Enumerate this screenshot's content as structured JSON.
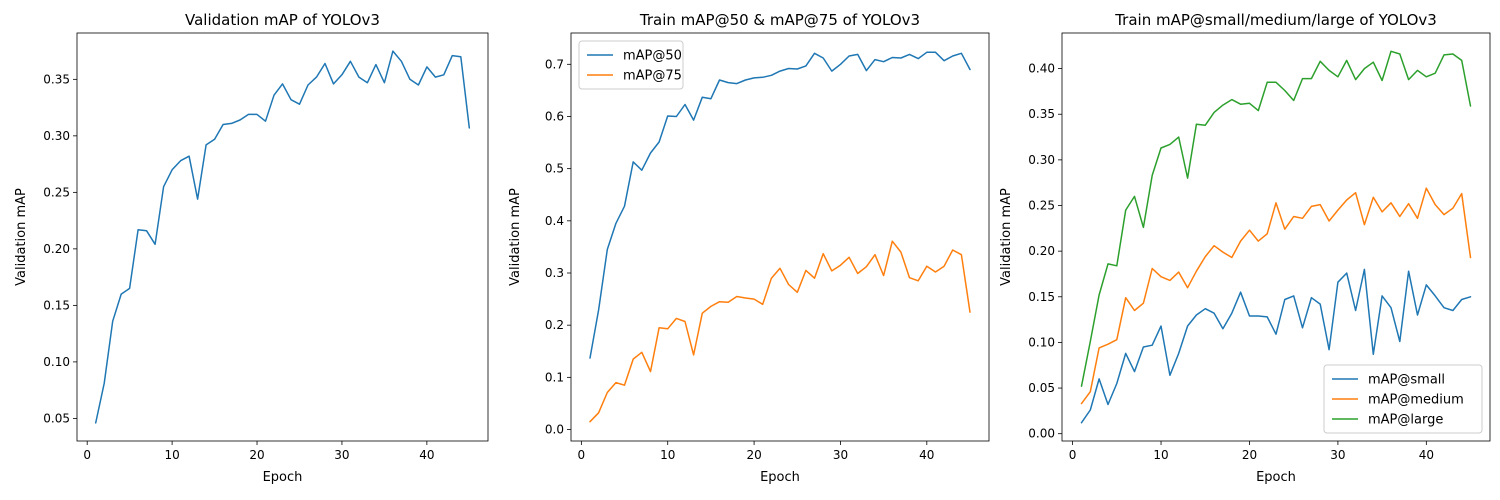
{
  "chart_data": [
    {
      "type": "line",
      "title": "Validation mAP of YOLOv3",
      "xlabel": "Epoch",
      "ylabel": "Validation mAP",
      "xlim": [
        -1.2,
        47.2
      ],
      "ylim": [
        0.03,
        0.391
      ],
      "xticks": [
        0,
        10,
        20,
        30,
        40
      ],
      "yticks": [
        0.05,
        0.1,
        0.15,
        0.2,
        0.25,
        0.3,
        0.35
      ],
      "ytick_labels": [
        "0.05",
        "0.10",
        "0.15",
        "0.20",
        "0.25",
        "0.30",
        "0.35"
      ],
      "grid": false,
      "legend": null,
      "x": [
        1,
        2,
        3,
        4,
        5,
        6,
        7,
        8,
        9,
        10,
        11,
        12,
        13,
        14,
        15,
        16,
        17,
        18,
        19,
        20,
        21,
        22,
        23,
        24,
        25,
        26,
        27,
        28,
        29,
        30,
        31,
        32,
        33,
        34,
        35,
        36,
        37,
        38,
        39,
        40,
        41,
        42,
        43,
        44,
        45
      ],
      "series": [
        {
          "color": "#1f77b4",
          "values": [
            0.046,
            0.081,
            0.136,
            0.16,
            0.165,
            0.217,
            0.216,
            0.204,
            0.255,
            0.27,
            0.278,
            0.282,
            0.244,
            0.292,
            0.297,
            0.31,
            0.311,
            0.314,
            0.319,
            0.319,
            0.313,
            0.336,
            0.346,
            0.332,
            0.328,
            0.345,
            0.352,
            0.364,
            0.346,
            0.354,
            0.366,
            0.352,
            0.347,
            0.363,
            0.347,
            0.375,
            0.366,
            0.35,
            0.345,
            0.361,
            0.352,
            0.354,
            0.371,
            0.37,
            0.307
          ]
        }
      ]
    },
    {
      "type": "line",
      "title": "Train mAP@50 & mAP@75 of YOLOv3",
      "xlabel": "Epoch",
      "ylabel": "Validation mAP",
      "xlim": [
        -1.2,
        47.2
      ],
      "ylim": [
        -0.022,
        0.76
      ],
      "xticks": [
        0,
        10,
        20,
        30,
        40
      ],
      "yticks": [
        0.0,
        0.1,
        0.2,
        0.3,
        0.4,
        0.5,
        0.6,
        0.7
      ],
      "ytick_labels": [
        "0.0",
        "0.1",
        "0.2",
        "0.3",
        "0.4",
        "0.5",
        "0.6",
        "0.7"
      ],
      "grid": false,
      "legend": "upper-left",
      "x": [
        1,
        2,
        3,
        4,
        5,
        6,
        7,
        8,
        9,
        10,
        11,
        12,
        13,
        14,
        15,
        16,
        17,
        18,
        19,
        20,
        21,
        22,
        23,
        24,
        25,
        26,
        27,
        28,
        29,
        30,
        31,
        32,
        33,
        34,
        35,
        36,
        37,
        38,
        39,
        40,
        41,
        42,
        43,
        44,
        45
      ],
      "series": [
        {
          "name": "mAP@50",
          "color": "#1f77b4",
          "values": [
            0.137,
            0.229,
            0.345,
            0.395,
            0.428,
            0.513,
            0.497,
            0.53,
            0.551,
            0.601,
            0.6,
            0.623,
            0.593,
            0.637,
            0.634,
            0.67,
            0.665,
            0.663,
            0.67,
            0.674,
            0.675,
            0.679,
            0.687,
            0.692,
            0.691,
            0.697,
            0.721,
            0.712,
            0.687,
            0.7,
            0.716,
            0.719,
            0.688,
            0.709,
            0.705,
            0.713,
            0.712,
            0.719,
            0.711,
            0.723,
            0.723,
            0.707,
            0.716,
            0.721,
            0.69
          ]
        },
        {
          "name": "mAP@75",
          "color": "#ff7f0e",
          "values": [
            0.015,
            0.032,
            0.071,
            0.09,
            0.085,
            0.135,
            0.148,
            0.111,
            0.195,
            0.193,
            0.213,
            0.207,
            0.143,
            0.223,
            0.236,
            0.245,
            0.244,
            0.255,
            0.252,
            0.25,
            0.24,
            0.29,
            0.309,
            0.278,
            0.263,
            0.305,
            0.29,
            0.337,
            0.304,
            0.315,
            0.33,
            0.299,
            0.312,
            0.335,
            0.295,
            0.361,
            0.34,
            0.291,
            0.285,
            0.313,
            0.302,
            0.313,
            0.344,
            0.335,
            0.225
          ]
        }
      ]
    },
    {
      "type": "line",
      "title": "Train mAP@small/medium/large of YOLOv3",
      "xlabel": "Epoch",
      "ylabel": "Validation mAP",
      "xlim": [
        -1.2,
        47.2
      ],
      "ylim": [
        -0.008,
        0.439
      ],
      "xticks": [
        0,
        10,
        20,
        30,
        40
      ],
      "yticks": [
        0.0,
        0.05,
        0.1,
        0.15,
        0.2,
        0.25,
        0.3,
        0.35,
        0.4
      ],
      "ytick_labels": [
        "0.00",
        "0.05",
        "0.10",
        "0.15",
        "0.20",
        "0.25",
        "0.30",
        "0.35",
        "0.40"
      ],
      "grid": false,
      "legend": "lower-right",
      "x": [
        1,
        2,
        3,
        4,
        5,
        6,
        7,
        8,
        9,
        10,
        11,
        12,
        13,
        14,
        15,
        16,
        17,
        18,
        19,
        20,
        21,
        22,
        23,
        24,
        25,
        26,
        27,
        28,
        29,
        30,
        31,
        32,
        33,
        34,
        35,
        36,
        37,
        38,
        39,
        40,
        41,
        42,
        43,
        44,
        45
      ],
      "series": [
        {
          "name": "mAP@small",
          "color": "#1f77b4",
          "values": [
            0.012,
            0.026,
            0.06,
            0.032,
            0.055,
            0.088,
            0.068,
            0.095,
            0.097,
            0.118,
            0.064,
            0.088,
            0.118,
            0.13,
            0.137,
            0.132,
            0.115,
            0.132,
            0.155,
            0.129,
            0.129,
            0.128,
            0.109,
            0.147,
            0.151,
            0.116,
            0.149,
            0.142,
            0.092,
            0.166,
            0.176,
            0.135,
            0.18,
            0.087,
            0.151,
            0.138,
            0.101,
            0.178,
            0.13,
            0.163,
            0.151,
            0.138,
            0.135,
            0.147,
            0.15
          ]
        },
        {
          "name": "mAP@medium",
          "color": "#ff7f0e",
          "values": [
            0.033,
            0.046,
            0.094,
            0.098,
            0.103,
            0.149,
            0.135,
            0.143,
            0.181,
            0.172,
            0.168,
            0.177,
            0.16,
            0.178,
            0.194,
            0.206,
            0.199,
            0.193,
            0.211,
            0.223,
            0.211,
            0.219,
            0.253,
            0.224,
            0.238,
            0.236,
            0.249,
            0.251,
            0.233,
            0.245,
            0.256,
            0.264,
            0.229,
            0.259,
            0.243,
            0.253,
            0.238,
            0.252,
            0.236,
            0.269,
            0.251,
            0.24,
            0.247,
            0.263,
            0.193
          ]
        },
        {
          "name": "mAP@large",
          "color": "#2ca02c",
          "values": [
            0.052,
            0.101,
            0.152,
            0.186,
            0.184,
            0.245,
            0.26,
            0.226,
            0.283,
            0.313,
            0.317,
            0.325,
            0.28,
            0.339,
            0.338,
            0.352,
            0.36,
            0.366,
            0.361,
            0.362,
            0.354,
            0.385,
            0.385,
            0.376,
            0.365,
            0.389,
            0.389,
            0.408,
            0.398,
            0.391,
            0.409,
            0.388,
            0.4,
            0.407,
            0.387,
            0.419,
            0.416,
            0.388,
            0.398,
            0.391,
            0.395,
            0.415,
            0.416,
            0.409,
            0.359
          ]
        }
      ]
    }
  ]
}
